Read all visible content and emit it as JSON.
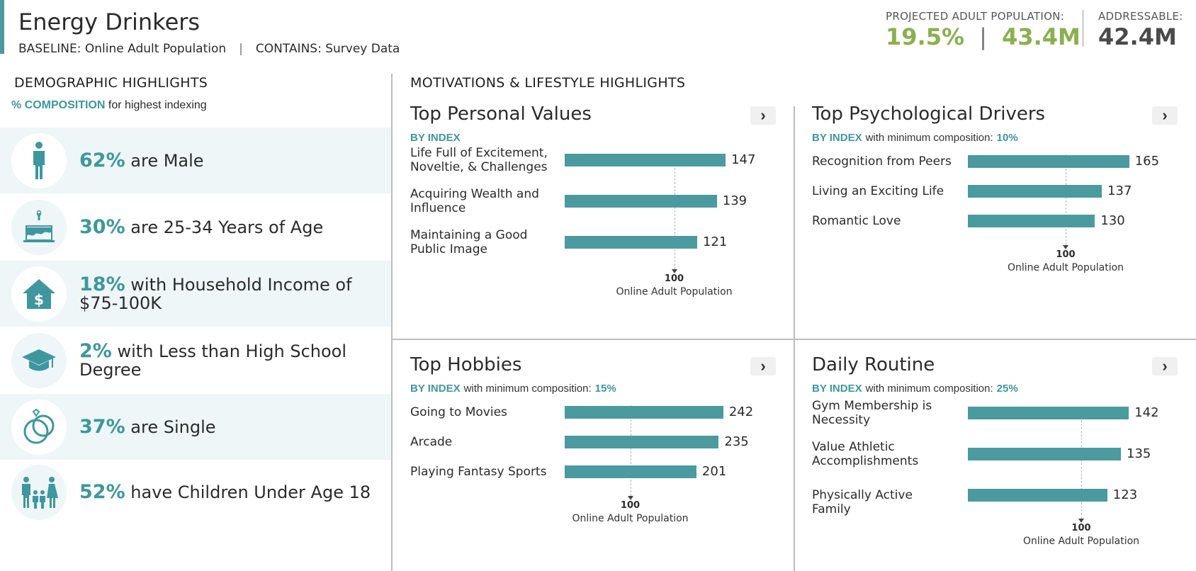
{
  "header": {
    "title": "Energy Drinkers",
    "baseline": "BASELINE: Online Adult Population",
    "separator": "|",
    "contains": "CONTAINS: Survey Data",
    "projected_label": "PROJECTED ADULT POPULATION:",
    "projected_pct": "19.5%",
    "projected_sep": "|",
    "projected_count": "43.4M",
    "addressable_label": "ADDRESSABLE:",
    "addressable_value": "42.4M"
  },
  "colors": {
    "accent": "#4a9aa0",
    "green": "#8ab04f",
    "teal_text": "#3e979e"
  },
  "demographics": {
    "title": "DEMOGRAPHIC HIGHLIGHTS",
    "note_highlight": "% COMPOSITION",
    "note_rest": "for highest indexing",
    "items": [
      {
        "icon": "male-person-icon",
        "pct": "62%",
        "text": "are Male"
      },
      {
        "icon": "birthday-cake-icon",
        "pct": "30%",
        "text": "are 25-34 Years of Age"
      },
      {
        "icon": "house-dollar-icon",
        "pct": "18%",
        "text": "with Household Income of $75-100K"
      },
      {
        "icon": "graduation-cap-icon",
        "pct": "2%",
        "text": "with Less than High School Degree"
      },
      {
        "icon": "rings-icon",
        "pct": "37%",
        "text": "are Single"
      },
      {
        "icon": "family-icon",
        "pct": "52%",
        "text": "have Children Under Age 18"
      }
    ]
  },
  "motivations": {
    "title": "MOTIVATIONS & LIFESTYLE HIGHLIGHTS",
    "panels": [
      {
        "title": "Top Personal Values",
        "by_index": "BY INDEX",
        "min_text": "",
        "min_value": "",
        "ref_value": "100",
        "ref_label": "Online Adult Population",
        "items": [
          {
            "label": "Life Full of Excitement, Noveltie, & Challenges",
            "value": 147
          },
          {
            "label": "Acquiring Wealth and Influence",
            "value": 139
          },
          {
            "label": "Maintaining a Good Public Image",
            "value": 121
          }
        ]
      },
      {
        "title": "Top Psychological Drivers",
        "by_index": "BY INDEX",
        "min_text": "with minimum composition:",
        "min_value": "10%",
        "ref_value": "100",
        "ref_label": "Online Adult Population",
        "items": [
          {
            "label": "Recognition from Peers",
            "value": 165
          },
          {
            "label": "Living an Exciting Life",
            "value": 137
          },
          {
            "label": "Romantic Love",
            "value": 130
          }
        ]
      },
      {
        "title": "Top Hobbies",
        "by_index": "BY INDEX",
        "min_text": "with minimum composition:",
        "min_value": "15%",
        "ref_value": "100",
        "ref_label": "Online Adult Population",
        "items": [
          {
            "label": "Going to Movies",
            "value": 242
          },
          {
            "label": "Arcade",
            "value": 235
          },
          {
            "label": "Playing Fantasy Sports",
            "value": 201
          }
        ]
      },
      {
        "title": "Daily Routine",
        "by_index": "BY INDEX",
        "min_text": "with minimum composition:",
        "min_value": "25%",
        "ref_value": "100",
        "ref_label": "Online Adult Population",
        "items": [
          {
            "label": "Gym Membership is Necessity",
            "value": 142
          },
          {
            "label": "Value Athletic Accomplishments",
            "value": 135
          },
          {
            "label": "Physically Active Family",
            "value": 123
          }
        ]
      }
    ]
  }
}
